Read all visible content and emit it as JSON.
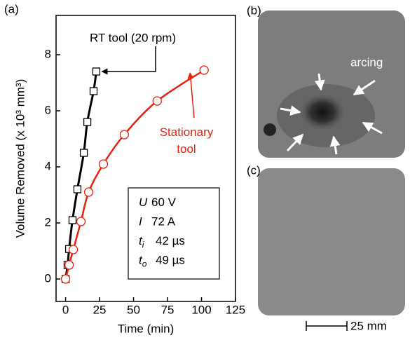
{
  "chart_data": {
    "type": "line",
    "panel_label": "(a)",
    "xlabel": "Time (min)",
    "ylabel": "Volume Removed (x 10³ mm³)",
    "xlim": [
      -7,
      125
    ],
    "xticks": [
      0,
      25,
      50,
      75,
      100,
      125
    ],
    "ylim": [
      -0.8,
      9.4
    ],
    "yticks": [
      0,
      2,
      4,
      6,
      8
    ],
    "series": [
      {
        "name": "RT tool (20 rpm)",
        "color": "#000000",
        "marker": "square",
        "x": [
          0,
          1.5,
          2.6,
          5.1,
          8.7,
          13.4,
          16,
          20.6,
          22.6
        ],
        "values": [
          0,
          0.5,
          1.07,
          2.1,
          3.2,
          4.5,
          5.6,
          6.7,
          7.4
        ]
      },
      {
        "name": "Stationary tool",
        "color": "#e8200c",
        "marker": "circle",
        "x": [
          0,
          2.6,
          5.7,
          11.3,
          17,
          27.8,
          43.2,
          67.4,
          101.9
        ],
        "values": [
          0,
          0.5,
          1.05,
          2.05,
          3.1,
          4.1,
          5.15,
          6.35,
          7.45
        ]
      }
    ],
    "parameters": [
      {
        "symbol": "U",
        "value": "60 V"
      },
      {
        "symbol": "I",
        "value": "72 A"
      },
      {
        "symbol": "t",
        "subscript": "i",
        "value": "42 µs"
      },
      {
        "symbol": "t",
        "subscript": "o",
        "value": "49 µs"
      }
    ]
  },
  "images": [
    {
      "label": "(b)",
      "annotation": "arcing"
    },
    {
      "label": "(c)"
    }
  ],
  "scale_bar": "25 mm"
}
